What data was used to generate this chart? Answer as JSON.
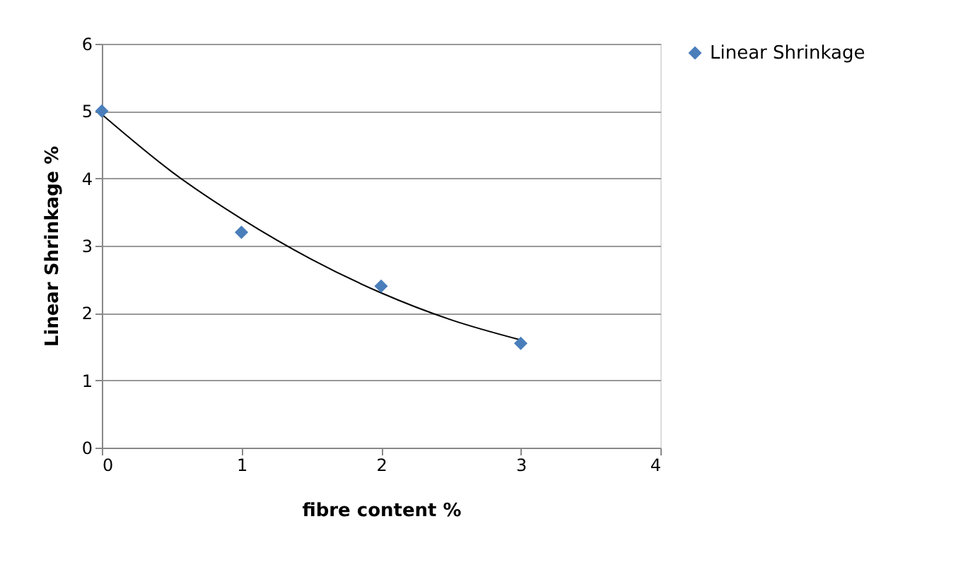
{
  "chart_data": {
    "type": "scatter",
    "xlabel": "fibre content %",
    "ylabel": "Linear Shrinkage %",
    "x": [
      0,
      1,
      2,
      3
    ],
    "series": [
      {
        "name": "Linear Shrinkage",
        "color": "#4a7ebb",
        "values": [
          5,
          3.2,
          2.4,
          1.55
        ],
        "marker": "diamond"
      },
      {
        "type": "line",
        "color": "#000000",
        "x": [
          0,
          0.5,
          1,
          1.5,
          2,
          2.5,
          3
        ],
        "values": [
          4.95,
          4.1,
          3.4,
          2.8,
          2.3,
          1.9,
          1.6
        ]
      }
    ],
    "xlim": [
      0,
      4
    ],
    "xticks": [
      0,
      1,
      2,
      3,
      4
    ],
    "ylim": [
      0,
      6
    ],
    "yticks": [
      0,
      1,
      2,
      3,
      4,
      5,
      6
    ],
    "grid": "y",
    "legend": "right"
  }
}
